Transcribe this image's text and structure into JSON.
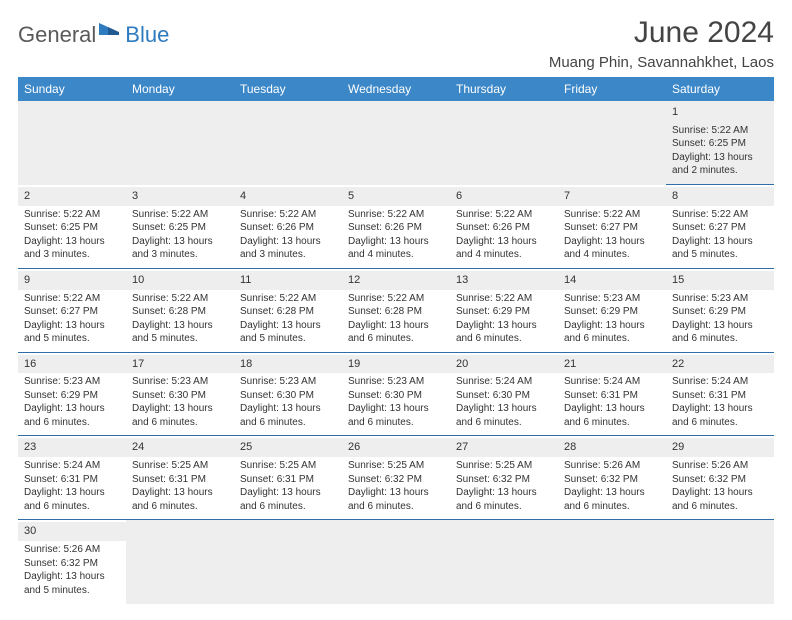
{
  "logo": {
    "part1": "General",
    "part2": "Blue"
  },
  "title": "June 2024",
  "location": "Muang Phin, Savannahkhet, Laos",
  "colors": {
    "header_bg": "#3b87c8",
    "header_text": "#ffffff",
    "row_separator": "#2f6fa8",
    "daynum_bg": "#eeeeee",
    "logo_gray": "#5a5a5a",
    "logo_blue": "#2f7bbf"
  },
  "weekdays": [
    "Sunday",
    "Monday",
    "Tuesday",
    "Wednesday",
    "Thursday",
    "Friday",
    "Saturday"
  ],
  "weeks": [
    [
      null,
      null,
      null,
      null,
      null,
      null,
      {
        "n": "1",
        "sr": "Sunrise: 5:22 AM",
        "ss": "Sunset: 6:25 PM",
        "dl": "Daylight: 13 hours and 2 minutes."
      }
    ],
    [
      {
        "n": "2",
        "sr": "Sunrise: 5:22 AM",
        "ss": "Sunset: 6:25 PM",
        "dl": "Daylight: 13 hours and 3 minutes."
      },
      {
        "n": "3",
        "sr": "Sunrise: 5:22 AM",
        "ss": "Sunset: 6:25 PM",
        "dl": "Daylight: 13 hours and 3 minutes."
      },
      {
        "n": "4",
        "sr": "Sunrise: 5:22 AM",
        "ss": "Sunset: 6:26 PM",
        "dl": "Daylight: 13 hours and 3 minutes."
      },
      {
        "n": "5",
        "sr": "Sunrise: 5:22 AM",
        "ss": "Sunset: 6:26 PM",
        "dl": "Daylight: 13 hours and 4 minutes."
      },
      {
        "n": "6",
        "sr": "Sunrise: 5:22 AM",
        "ss": "Sunset: 6:26 PM",
        "dl": "Daylight: 13 hours and 4 minutes."
      },
      {
        "n": "7",
        "sr": "Sunrise: 5:22 AM",
        "ss": "Sunset: 6:27 PM",
        "dl": "Daylight: 13 hours and 4 minutes."
      },
      {
        "n": "8",
        "sr": "Sunrise: 5:22 AM",
        "ss": "Sunset: 6:27 PM",
        "dl": "Daylight: 13 hours and 5 minutes."
      }
    ],
    [
      {
        "n": "9",
        "sr": "Sunrise: 5:22 AM",
        "ss": "Sunset: 6:27 PM",
        "dl": "Daylight: 13 hours and 5 minutes."
      },
      {
        "n": "10",
        "sr": "Sunrise: 5:22 AM",
        "ss": "Sunset: 6:28 PM",
        "dl": "Daylight: 13 hours and 5 minutes."
      },
      {
        "n": "11",
        "sr": "Sunrise: 5:22 AM",
        "ss": "Sunset: 6:28 PM",
        "dl": "Daylight: 13 hours and 5 minutes."
      },
      {
        "n": "12",
        "sr": "Sunrise: 5:22 AM",
        "ss": "Sunset: 6:28 PM",
        "dl": "Daylight: 13 hours and 6 minutes."
      },
      {
        "n": "13",
        "sr": "Sunrise: 5:22 AM",
        "ss": "Sunset: 6:29 PM",
        "dl": "Daylight: 13 hours and 6 minutes."
      },
      {
        "n": "14",
        "sr": "Sunrise: 5:23 AM",
        "ss": "Sunset: 6:29 PM",
        "dl": "Daylight: 13 hours and 6 minutes."
      },
      {
        "n": "15",
        "sr": "Sunrise: 5:23 AM",
        "ss": "Sunset: 6:29 PM",
        "dl": "Daylight: 13 hours and 6 minutes."
      }
    ],
    [
      {
        "n": "16",
        "sr": "Sunrise: 5:23 AM",
        "ss": "Sunset: 6:29 PM",
        "dl": "Daylight: 13 hours and 6 minutes."
      },
      {
        "n": "17",
        "sr": "Sunrise: 5:23 AM",
        "ss": "Sunset: 6:30 PM",
        "dl": "Daylight: 13 hours and 6 minutes."
      },
      {
        "n": "18",
        "sr": "Sunrise: 5:23 AM",
        "ss": "Sunset: 6:30 PM",
        "dl": "Daylight: 13 hours and 6 minutes."
      },
      {
        "n": "19",
        "sr": "Sunrise: 5:23 AM",
        "ss": "Sunset: 6:30 PM",
        "dl": "Daylight: 13 hours and 6 minutes."
      },
      {
        "n": "20",
        "sr": "Sunrise: 5:24 AM",
        "ss": "Sunset: 6:30 PM",
        "dl": "Daylight: 13 hours and 6 minutes."
      },
      {
        "n": "21",
        "sr": "Sunrise: 5:24 AM",
        "ss": "Sunset: 6:31 PM",
        "dl": "Daylight: 13 hours and 6 minutes."
      },
      {
        "n": "22",
        "sr": "Sunrise: 5:24 AM",
        "ss": "Sunset: 6:31 PM",
        "dl": "Daylight: 13 hours and 6 minutes."
      }
    ],
    [
      {
        "n": "23",
        "sr": "Sunrise: 5:24 AM",
        "ss": "Sunset: 6:31 PM",
        "dl": "Daylight: 13 hours and 6 minutes."
      },
      {
        "n": "24",
        "sr": "Sunrise: 5:25 AM",
        "ss": "Sunset: 6:31 PM",
        "dl": "Daylight: 13 hours and 6 minutes."
      },
      {
        "n": "25",
        "sr": "Sunrise: 5:25 AM",
        "ss": "Sunset: 6:31 PM",
        "dl": "Daylight: 13 hours and 6 minutes."
      },
      {
        "n": "26",
        "sr": "Sunrise: 5:25 AM",
        "ss": "Sunset: 6:32 PM",
        "dl": "Daylight: 13 hours and 6 minutes."
      },
      {
        "n": "27",
        "sr": "Sunrise: 5:25 AM",
        "ss": "Sunset: 6:32 PM",
        "dl": "Daylight: 13 hours and 6 minutes."
      },
      {
        "n": "28",
        "sr": "Sunrise: 5:26 AM",
        "ss": "Sunset: 6:32 PM",
        "dl": "Daylight: 13 hours and 6 minutes."
      },
      {
        "n": "29",
        "sr": "Sunrise: 5:26 AM",
        "ss": "Sunset: 6:32 PM",
        "dl": "Daylight: 13 hours and 6 minutes."
      }
    ],
    [
      {
        "n": "30",
        "sr": "Sunrise: 5:26 AM",
        "ss": "Sunset: 6:32 PM",
        "dl": "Daylight: 13 hours and 5 minutes."
      },
      null,
      null,
      null,
      null,
      null,
      null
    ]
  ]
}
